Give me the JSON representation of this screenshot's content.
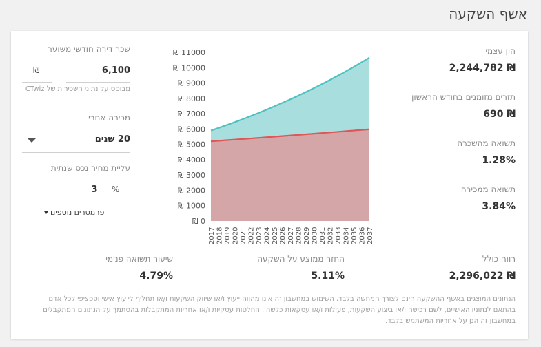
{
  "header": {
    "title": "אשף השקעה"
  },
  "stats": {
    "equity_label": "הון עצמי",
    "equity_value": "₪ 2,244,782",
    "cashflow_label": "תזרים מזומנים בחודש הראשון",
    "cashflow_value": "₪ 690",
    "rent_yield_label": "תשואה מהשכרה",
    "rent_yield_value": "1.28%",
    "sale_yield_label": "תשואה ממכירה",
    "sale_yield_value": "3.84%"
  },
  "inputs": {
    "rent_label": "שכר דירה חודשי משוער",
    "rent_value": "6,100",
    "rent_unit": "₪",
    "rent_note": "מבוסס על נתוני השכירות של CTwiz",
    "sell_after_label": "מכירה אחרי",
    "sell_after_value": "20 שנים",
    "appreciation_label": "עליית מחיר נכס שנתית",
    "appreciation_value": "3",
    "appreciation_unit": "%",
    "more_params": "פרמטרים נוספים"
  },
  "summary": {
    "total_profit_label": "רווח כולל",
    "total_profit_value": "₪ 2,296,022",
    "avg_return_label": "החזר ממוצע על השקעה",
    "avg_return_value": "5.11%",
    "irr_label": "שיעור תשואה פנימי",
    "irr_value": "4.79%"
  },
  "disclaimer": "הנתונים המוצגים באשף ההשקעה הינם לצורך המחשה בלבד. השימוש במחשבון זה אינו מהווה ייעוץ ו/או שיווק השקעות ו/או תחליף לייעוץ אישי וספציפי לכל אדם בהתאם לנתוניו האישיים, לשם רכישה ו/או ביצוע השקעות, פעולות ו/או עסקאות כלשהן. החלטות עסקיות ו/או אחריות המתקבלות בהסתמך על הנתונים המתקבלים במחשבון זה הנן על אחריות המשתמש בלבד.",
  "chart_data": {
    "type": "area",
    "x": [
      "2017",
      "2018",
      "2019",
      "2020",
      "2021",
      "2022",
      "2023",
      "2024",
      "2025",
      "2026",
      "2027",
      "2028",
      "2029",
      "2030",
      "2031",
      "2032",
      "2033",
      "2034",
      "2035",
      "2036",
      "2037"
    ],
    "y_tick_labels": [
      "₪ 0",
      "₪ 1000",
      "₪ 2000",
      "₪ 3000",
      "₪ 4000",
      "₪ 5000",
      "₪ 6000",
      "₪ 7000",
      "₪ 8000",
      "₪ 9000",
      "₪ 10000",
      "₪ 11000"
    ],
    "ylim": [
      0,
      11000
    ],
    "series": [
      {
        "values": [
          5900,
          6077,
          6259,
          6447,
          6640,
          6840,
          7045,
          7256,
          7474,
          7698,
          7929,
          8167,
          8412,
          8664,
          8924,
          9192,
          9468,
          9752,
          10044,
          10346,
          10656
        ],
        "color": "#4fc1c1",
        "fill": "#a9dede"
      },
      {
        "values": [
          5200,
          5237,
          5274,
          5311,
          5348,
          5386,
          5424,
          5462,
          5500,
          5539,
          5578,
          5617,
          5657,
          5697,
          5737,
          5777,
          5818,
          5859,
          5900,
          5942,
          5984
        ],
        "color": "#e05555",
        "fill": "#d4a6a7"
      }
    ],
    "grid": false
  }
}
